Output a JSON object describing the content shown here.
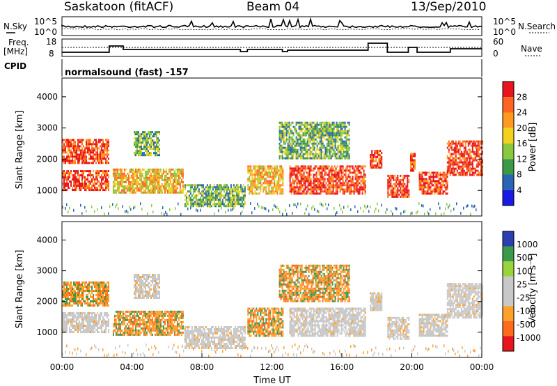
{
  "header": {
    "station": "Saskatoon (fitACF)",
    "beam": "Beam 04",
    "date": "13/Sep/2010"
  },
  "status_panels": {
    "nsky_label": "N.Sky",
    "nsky_ticks": [
      "10^5",
      "10^0"
    ],
    "nsearch_label": "N.Search",
    "nsearch_ticks": [
      "10^5",
      "10^0"
    ],
    "freq_label_1": "Freq.",
    "freq_label_2": "[MHz]",
    "freq_ticks": [
      "18",
      "8"
    ],
    "nave_label": "Nave",
    "nave_ticks": [
      "60",
      "0"
    ],
    "cpid_label": "CPID",
    "cpid_text": "normalsound (fast) -157"
  },
  "chart_data": [
    {
      "type": "heatmap",
      "panel": "power",
      "xlabel": "",
      "ylabel": "Slant Range [km]",
      "colorbar_label": "Power [dB]",
      "xlim_hours": [
        0,
        24
      ],
      "ylim_km": [
        180,
        4600
      ],
      "yticks": [
        1000,
        2000,
        3000,
        4000
      ],
      "colorbar_ticks": [
        "28",
        "24",
        "20",
        "16",
        "12",
        "8",
        "4"
      ],
      "colorbar_colors": [
        "#e8141e",
        "#ff6420",
        "#ff9a1e",
        "#f2d21e",
        "#8ac83c",
        "#3c9a46",
        "#2a64b4",
        "#1a1ae6"
      ],
      "echo_regions": [
        {
          "t0": 0.0,
          "t1": 2.7,
          "r0": 1850,
          "r1": 2650,
          "level": 24
        },
        {
          "t0": 0.0,
          "t1": 2.7,
          "r0": 1000,
          "r1": 1650,
          "level": 24
        },
        {
          "t0": 2.9,
          "t1": 6.9,
          "r0": 900,
          "r1": 1700,
          "level": 18
        },
        {
          "t0": 4.1,
          "t1": 5.6,
          "r0": 2100,
          "r1": 2900,
          "level": 10
        },
        {
          "t0": 7.0,
          "t1": 10.5,
          "r0": 500,
          "r1": 1200,
          "level": 6
        },
        {
          "t0": 10.6,
          "t1": 12.6,
          "r0": 900,
          "r1": 1800,
          "level": 18
        },
        {
          "t0": 12.4,
          "t1": 16.4,
          "r0": 2000,
          "r1": 3200,
          "level": 12
        },
        {
          "t0": 13.0,
          "t1": 17.3,
          "r0": 900,
          "r1": 1800,
          "level": 24
        },
        {
          "t0": 17.6,
          "t1": 18.3,
          "r0": 1700,
          "r1": 2300,
          "level": 20
        },
        {
          "t0": 18.6,
          "t1": 19.8,
          "r0": 800,
          "r1": 1500,
          "level": 24
        },
        {
          "t0": 19.9,
          "t1": 20.2,
          "r0": 1600,
          "r1": 2200,
          "level": 24
        },
        {
          "t0": 20.4,
          "t1": 22.0,
          "r0": 900,
          "r1": 1600,
          "level": 24
        },
        {
          "t0": 22.0,
          "t1": 24.0,
          "r0": 1500,
          "r1": 2600,
          "level": 20
        }
      ]
    },
    {
      "type": "heatmap",
      "panel": "velocity",
      "xlabel": "Time UT",
      "ylabel": "Slant Range [km]",
      "colorbar_label": "Velocity [m s⁻¹]",
      "xlim_hours": [
        0,
        24
      ],
      "ylim_km": [
        180,
        4600
      ],
      "yticks": [
        1000,
        2000,
        3000,
        4000
      ],
      "xticks": [
        "00:00",
        "04:00",
        "08:00",
        "12:00",
        "16:00",
        "20:00",
        "00:00"
      ],
      "colorbar_ticks": [
        "1000",
        "500",
        "100",
        "25",
        "-25",
        "-100",
        "-500",
        "-1000"
      ],
      "colorbar_colors": [
        "#2b3fb0",
        "#3a9a4c",
        "#9ad43c",
        "#c8c8c8",
        "#c8c8c8",
        "#ffa02a",
        "#ff6a1e",
        "#e8141e"
      ],
      "echo_regions": [
        {
          "t0": 0.0,
          "t1": 2.7,
          "r0": 1850,
          "r1": 2650,
          "level": "-100"
        },
        {
          "t0": 0.0,
          "t1": 2.7,
          "r0": 1000,
          "r1": 1650,
          "level": "ground"
        },
        {
          "t0": 2.9,
          "t1": 6.9,
          "r0": 900,
          "r1": 1700,
          "level": "-100"
        },
        {
          "t0": 4.1,
          "t1": 5.6,
          "r0": 2100,
          "r1": 2900,
          "level": "ground"
        },
        {
          "t0": 7.0,
          "t1": 10.5,
          "r0": 500,
          "r1": 1200,
          "level": "ground"
        },
        {
          "t0": 10.6,
          "t1": 12.6,
          "r0": 900,
          "r1": 1800,
          "level": "-100"
        },
        {
          "t0": 12.4,
          "t1": 16.4,
          "r0": 2000,
          "r1": 3200,
          "level": "-100"
        },
        {
          "t0": 13.0,
          "t1": 17.3,
          "r0": 900,
          "r1": 1800,
          "level": "ground"
        },
        {
          "t0": 17.6,
          "t1": 18.3,
          "r0": 1700,
          "r1": 2300,
          "level": "ground"
        },
        {
          "t0": 18.6,
          "t1": 19.8,
          "r0": 800,
          "r1": 1500,
          "level": "ground"
        },
        {
          "t0": 20.4,
          "t1": 22.0,
          "r0": 900,
          "r1": 1600,
          "level": "ground"
        },
        {
          "t0": 22.0,
          "t1": 24.0,
          "r0": 1500,
          "r1": 2600,
          "level": "ground"
        }
      ]
    }
  ]
}
